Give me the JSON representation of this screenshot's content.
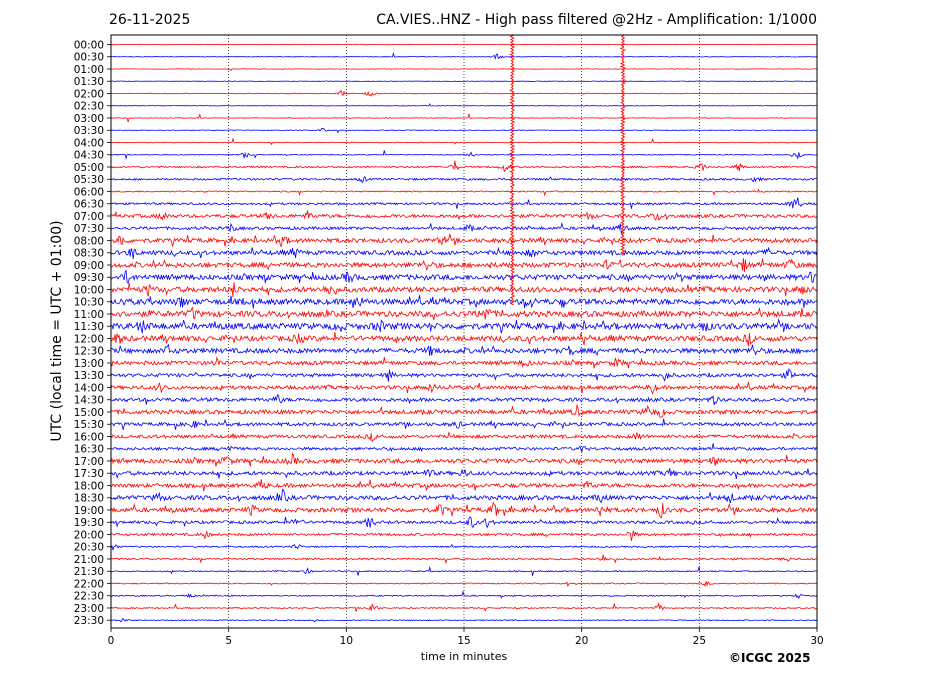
{
  "header": {
    "date": "26-11-2025",
    "title": "CA.VIES..HNZ - High pass filtered @2Hz - Amplification: 1/1000"
  },
  "footer": {
    "copyright": "©ICGC 2025"
  },
  "chart_data": {
    "type": "line",
    "title": "CA.VIES..HNZ - High pass filtered @2Hz - Amplification: 1/1000",
    "xlabel": "time in minutes",
    "ylabel": "UTC (local time = UTC + 01:00)",
    "xlim": [
      0,
      30
    ],
    "x_ticks": [
      0,
      5,
      10,
      15,
      20,
      25,
      30
    ],
    "grid": "vertical dotted at x = 5, 10, 15, 20, 25",
    "colors": {
      "even_rows": "#ff0000",
      "odd_rows": "#0000ff"
    },
    "rows": [
      {
        "label": "00:00",
        "activity": 0.05,
        "events": []
      },
      {
        "label": "00:30",
        "activity": 0.06,
        "events": [
          [
            16.4,
            0.5
          ]
        ]
      },
      {
        "label": "01:00",
        "activity": 0.05,
        "events": []
      },
      {
        "label": "01:30",
        "activity": 0.06,
        "events": []
      },
      {
        "label": "02:00",
        "activity": 0.07,
        "events": [
          [
            9.8,
            0.5
          ],
          [
            11.0,
            0.6
          ]
        ]
      },
      {
        "label": "02:30",
        "activity": 0.06,
        "events": []
      },
      {
        "label": "03:00",
        "activity": 0.06,
        "events": []
      },
      {
        "label": "03:30",
        "activity": 0.07,
        "events": [
          [
            9.0,
            0.4
          ]
        ]
      },
      {
        "label": "04:00",
        "activity": 0.07,
        "events": []
      },
      {
        "label": "04:30",
        "activity": 0.08,
        "events": [
          [
            5.7,
            0.6
          ],
          [
            15.3,
            0.4
          ],
          [
            29.2,
            0.5
          ]
        ]
      },
      {
        "label": "05:00",
        "activity": 0.18,
        "events": [
          [
            14.6,
            0.9
          ],
          [
            16.7,
            0.7
          ],
          [
            25.1,
            0.8
          ],
          [
            26.7,
            0.7
          ]
        ]
      },
      {
        "label": "05:30",
        "activity": 0.2,
        "events": [
          [
            10.7,
            0.5
          ],
          [
            27.4,
            0.5
          ]
        ]
      },
      {
        "label": "06:00",
        "activity": 0.14,
        "events": []
      },
      {
        "label": "06:30",
        "activity": 0.22,
        "events": [
          [
            29.0,
            1.0
          ]
        ]
      },
      {
        "label": "07:00",
        "activity": 0.35,
        "events": [
          [
            2.2,
            0.8
          ],
          [
            6.7,
            0.7
          ],
          [
            8.4,
            0.8
          ],
          [
            20.3,
            0.7
          ],
          [
            23.2,
            0.8
          ]
        ]
      },
      {
        "label": "07:30",
        "activity": 0.3,
        "events": [
          [
            5.1,
            0.6
          ],
          [
            15.2,
            0.5
          ],
          [
            21.7,
            0.8
          ]
        ]
      },
      {
        "label": "08:00",
        "activity": 0.45,
        "events": [
          [
            0.4,
            1.0
          ],
          [
            7.3,
            1.0
          ],
          [
            14.1,
            0.7
          ]
        ]
      },
      {
        "label": "08:30",
        "activity": 0.45,
        "events": [
          [
            0.9,
            1.0
          ],
          [
            7.8,
            0.9
          ],
          [
            17.9,
            0.7
          ],
          [
            28.0,
            0.7
          ]
        ]
      },
      {
        "label": "09:00",
        "activity": 0.5,
        "events": [
          [
            13.4,
            0.8
          ],
          [
            21.1,
            0.7
          ],
          [
            26.9,
            1.0
          ],
          [
            28.9,
            1.0
          ]
        ]
      },
      {
        "label": "09:30",
        "activity": 0.55,
        "events": [
          [
            0.7,
            1.0
          ],
          [
            10.1,
            0.9
          ],
          [
            29.8,
            0.9
          ]
        ]
      },
      {
        "label": "10:00",
        "activity": 0.55,
        "events": [
          [
            1.6,
            0.8
          ],
          [
            5.2,
            0.9
          ],
          [
            9.3,
            1.0
          ],
          [
            29.4,
            0.9
          ]
        ]
      },
      {
        "label": "10:30",
        "activity": 0.6,
        "events": [
          [
            3.0,
            0.9
          ],
          [
            10.5,
            1.0
          ],
          [
            17.8,
            0.9
          ]
        ]
      },
      {
        "label": "11:00",
        "activity": 0.6,
        "events": [
          [
            3.5,
            0.9
          ],
          [
            15.8,
            1.0
          ],
          [
            16.0,
            0.9
          ]
        ]
      },
      {
        "label": "11:30",
        "activity": 0.65,
        "events": [
          [
            1.3,
            0.9
          ],
          [
            9.7,
            0.9
          ],
          [
            11.4,
            1.0
          ],
          [
            25.2,
            0.9
          ]
        ]
      },
      {
        "label": "12:00",
        "activity": 0.55,
        "events": [
          [
            0.3,
            0.9
          ],
          [
            8.0,
            0.8
          ],
          [
            27.1,
            0.8
          ]
        ]
      },
      {
        "label": "12:30",
        "activity": 0.5,
        "events": [
          [
            2.4,
            0.8
          ],
          [
            13.6,
            0.8
          ],
          [
            19.5,
            0.7
          ],
          [
            27.3,
            0.9
          ]
        ]
      },
      {
        "label": "13:00",
        "activity": 0.4,
        "events": [
          [
            4.5,
            0.8
          ],
          [
            17.6,
            0.7
          ],
          [
            21.5,
            0.7
          ]
        ]
      },
      {
        "label": "13:30",
        "activity": 0.35,
        "events": [
          [
            11.8,
            0.8
          ],
          [
            23.6,
            0.7
          ],
          [
            28.8,
            0.9
          ]
        ]
      },
      {
        "label": "14:00",
        "activity": 0.38,
        "events": [
          [
            2.1,
            0.7
          ],
          [
            13.6,
            0.7
          ],
          [
            23.0,
            0.8
          ]
        ]
      },
      {
        "label": "14:30",
        "activity": 0.38,
        "events": [
          [
            7.1,
            0.7
          ],
          [
            25.6,
            0.8
          ]
        ]
      },
      {
        "label": "15:00",
        "activity": 0.42,
        "events": [
          [
            19.8,
            0.8
          ],
          [
            22.8,
            0.9
          ],
          [
            23.4,
            0.8
          ]
        ]
      },
      {
        "label": "15:30",
        "activity": 0.35,
        "events": [
          [
            3.5,
            0.6
          ],
          [
            14.7,
            0.6
          ]
        ]
      },
      {
        "label": "16:00",
        "activity": 0.35,
        "events": [
          [
            11.1,
            0.5
          ],
          [
            22.4,
            0.8
          ]
        ]
      },
      {
        "label": "16:30",
        "activity": 0.3,
        "events": [
          [
            5.0,
            0.6
          ],
          [
            20.0,
            0.5
          ]
        ]
      },
      {
        "label": "17:00",
        "activity": 0.45,
        "events": [
          [
            4.9,
            1.0
          ],
          [
            7.7,
            0.9
          ],
          [
            25.6,
            0.7
          ]
        ]
      },
      {
        "label": "17:30",
        "activity": 0.4,
        "events": [
          [
            13.5,
            0.8
          ],
          [
            15.0,
            0.7
          ],
          [
            23.8,
            0.8
          ]
        ]
      },
      {
        "label": "18:00",
        "activity": 0.4,
        "events": [
          [
            6.4,
            0.8
          ],
          [
            20.3,
            0.7
          ],
          [
            28.9,
            0.7
          ]
        ]
      },
      {
        "label": "18:30",
        "activity": 0.45,
        "events": [
          [
            2.0,
            0.8
          ],
          [
            7.3,
            1.0
          ],
          [
            20.8,
            0.8
          ],
          [
            26.3,
            0.8
          ]
        ]
      },
      {
        "label": "19:00",
        "activity": 0.45,
        "events": [
          [
            14.0,
            1.2
          ],
          [
            16.3,
            1.2
          ],
          [
            20.8,
            1.2
          ],
          [
            23.4,
            1.2
          ],
          [
            6.0,
            0.8
          ]
        ]
      },
      {
        "label": "19:30",
        "activity": 0.3,
        "events": [
          [
            7.9,
            1.0
          ],
          [
            11.0,
            1.3
          ],
          [
            15.3,
            1.1
          ],
          [
            16.0,
            0.9
          ]
        ]
      },
      {
        "label": "20:00",
        "activity": 0.25,
        "events": [
          [
            4.0,
            0.6
          ],
          [
            22.1,
            1.0
          ]
        ]
      },
      {
        "label": "20:30",
        "activity": 0.15,
        "events": [
          [
            0.1,
            0.7
          ],
          [
            7.9,
            0.6
          ]
        ]
      },
      {
        "label": "21:00",
        "activity": 0.18,
        "events": [
          [
            20.9,
            0.7
          ],
          [
            28.7,
            0.5
          ]
        ]
      },
      {
        "label": "21:30",
        "activity": 0.12,
        "events": [
          [
            8.3,
            0.5
          ]
        ]
      },
      {
        "label": "22:00",
        "activity": 0.12,
        "events": [
          [
            25.3,
            0.5
          ]
        ]
      },
      {
        "label": "22:30",
        "activity": 0.12,
        "events": [
          [
            3.3,
            0.4
          ],
          [
            29.2,
            0.4
          ]
        ]
      },
      {
        "label": "23:00",
        "activity": 0.12,
        "events": [
          [
            11.1,
            1.0
          ],
          [
            23.3,
            0.7
          ]
        ]
      },
      {
        "label": "23:30",
        "activity": 0.1,
        "events": [
          [
            0.5,
            0.4
          ]
        ]
      }
    ],
    "spikes": [
      {
        "x": 17.05,
        "from_row": "00:00",
        "to_row": "10:30",
        "color": "#ff0000"
      },
      {
        "x": 21.75,
        "from_row": "00:00",
        "to_row": "08:30",
        "color": "#ff0000"
      }
    ]
  }
}
